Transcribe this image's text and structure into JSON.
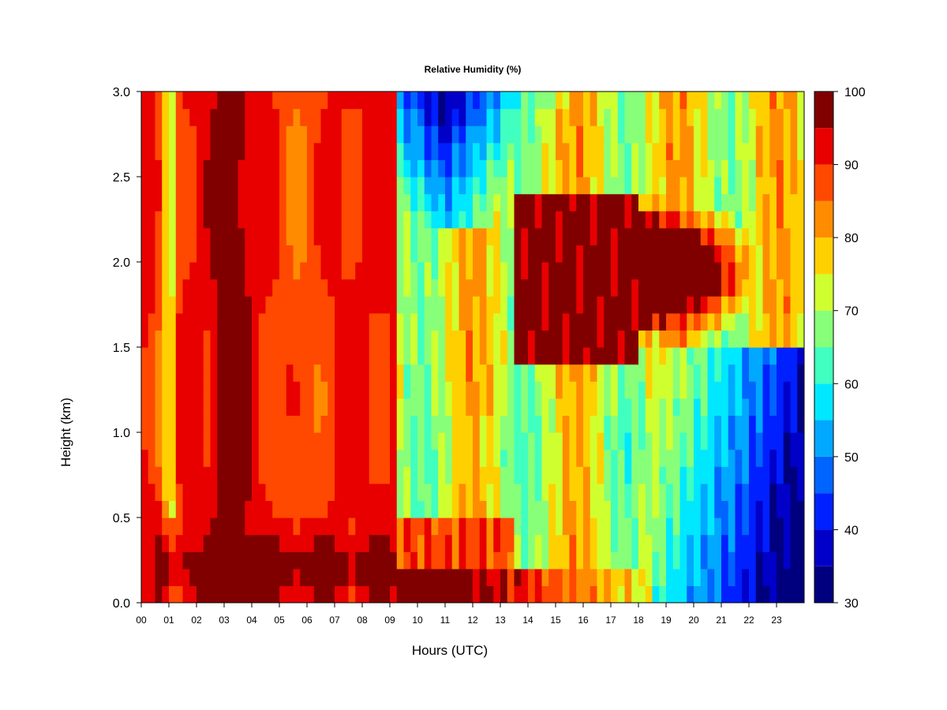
{
  "chart_data": {
    "type": "heatmap",
    "title": "Relative Humidity (%)",
    "xlabel": "Hours (UTC)",
    "ylabel": "Height (km)",
    "x_ticks": [
      "00",
      "01",
      "02",
      "03",
      "04",
      "05",
      "06",
      "07",
      "08",
      "09",
      "10",
      "11",
      "12",
      "13",
      "14",
      "15",
      "16",
      "17",
      "18",
      "19",
      "20",
      "21",
      "22",
      "23"
    ],
    "y_ticks": [
      "0.0",
      "0.5",
      "1.0",
      "1.5",
      "2.0",
      "2.5",
      "3.0"
    ],
    "xlim": [
      0,
      24
    ],
    "ylim": [
      0,
      3
    ],
    "colorbar": {
      "ticks": [
        "30",
        "40",
        "50",
        "60",
        "70",
        "80",
        "90",
        "100"
      ],
      "range": [
        30,
        100
      ],
      "levels": [
        30,
        35,
        40,
        45,
        50,
        55,
        60,
        65,
        70,
        75,
        80,
        85,
        90,
        95,
        100
      ],
      "colors": [
        "#00007f",
        "#0000c8",
        "#0020ff",
        "#0064ff",
        "#00a8ff",
        "#00e8ff",
        "#40ffbf",
        "#88ff78",
        "#d0ff30",
        "#ffd000",
        "#ff8c00",
        "#ff4800",
        "#e80000",
        "#800000"
      ]
    },
    "grid": false,
    "legend": "colorbar-right"
  }
}
